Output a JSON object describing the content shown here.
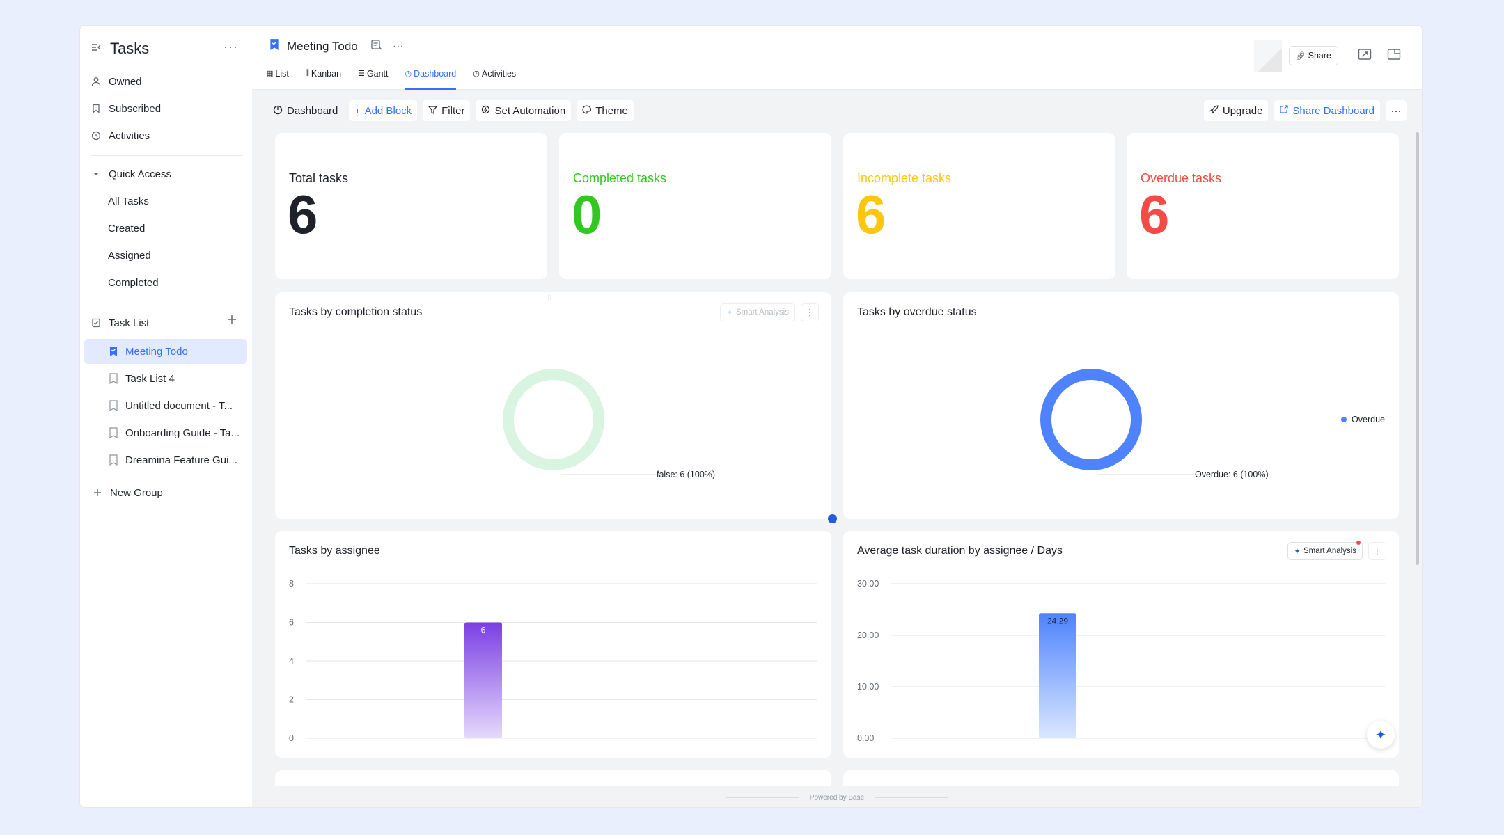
{
  "sidebar": {
    "title": "Tasks",
    "more": "···",
    "nav": [
      {
        "label": "Owned",
        "icon": "user-icon"
      },
      {
        "label": "Subscribed",
        "icon": "bookmark-icon"
      },
      {
        "label": "Activities",
        "icon": "history-icon"
      }
    ],
    "quick_access": {
      "label": "Quick Access",
      "items": [
        "All Tasks",
        "Created",
        "Assigned",
        "Completed"
      ]
    },
    "task_list": {
      "label": "Task List",
      "items": [
        "Meeting Todo",
        "Task List 4",
        "Untitled document - T...",
        "Onboarding Guide - Ta...",
        "Dreamina Feature Gui..."
      ],
      "active_index": 0
    },
    "new_group": "New Group"
  },
  "header": {
    "doc_title": "Meeting Todo",
    "more": "···",
    "tabs": [
      {
        "label": "List",
        "icon": "table-icon"
      },
      {
        "label": "Kanban",
        "icon": "kanban-icon"
      },
      {
        "label": "Gantt",
        "icon": "gantt-icon"
      },
      {
        "label": "Dashboard",
        "icon": "dashboard-icon",
        "active": true
      },
      {
        "label": "Activities",
        "icon": "history-icon"
      }
    ],
    "share": "Share"
  },
  "toolbar": {
    "dashboard": "Dashboard",
    "add_block": "Add Block",
    "filter": "Filter",
    "set_automation": "Set Automation",
    "theme": "Theme",
    "upgrade": "Upgrade",
    "share_dashboard": "Share Dashboard",
    "more": "···"
  },
  "stats": [
    {
      "label": "Total tasks",
      "value": "6",
      "color": "#1f2329"
    },
    {
      "label": "Completed tasks",
      "value": "0",
      "color": "#34c724"
    },
    {
      "label": "Incomplete tasks",
      "value": "6",
      "color": "#ffc60a"
    },
    {
      "label": "Overdue tasks",
      "value": "6",
      "color": "#f54a45"
    }
  ],
  "smart_analysis": "Smart Analysis",
  "footer": "Powered by Base",
  "chart_data": [
    {
      "type": "pie",
      "title": "Tasks by completion status",
      "slices": [
        {
          "label": "false",
          "value": 6,
          "percent": 100
        }
      ],
      "data_label": "false: 6 (100%)",
      "color": "#d9f5e1"
    },
    {
      "type": "pie",
      "title": "Tasks by overdue status",
      "slices": [
        {
          "label": "Overdue",
          "value": 6,
          "percent": 100
        }
      ],
      "data_label": "Overdue: 6 (100%)",
      "legend": [
        "Overdue"
      ],
      "legend_position": "right",
      "color": "#4e83fd"
    },
    {
      "type": "bar",
      "title": "Tasks by assignee",
      "categories": [
        ""
      ],
      "values": [
        6
      ],
      "data_labels": [
        "6"
      ],
      "yticks": [
        "0",
        "2",
        "4",
        "6",
        "8"
      ],
      "ylim": [
        0,
        8
      ],
      "color_top": "#7b3fe4",
      "color_bottom": "#e6d9fb"
    },
    {
      "type": "bar",
      "title": "Average task duration by assignee / Days",
      "categories": [
        ""
      ],
      "values": [
        24.29
      ],
      "data_labels": [
        "24.29"
      ],
      "yticks": [
        "0.00",
        "10.00",
        "20.00",
        "30.00"
      ],
      "ylim": [
        0,
        30
      ],
      "color_top": "#4e83fd",
      "color_bottom": "#dbe7ff"
    }
  ]
}
